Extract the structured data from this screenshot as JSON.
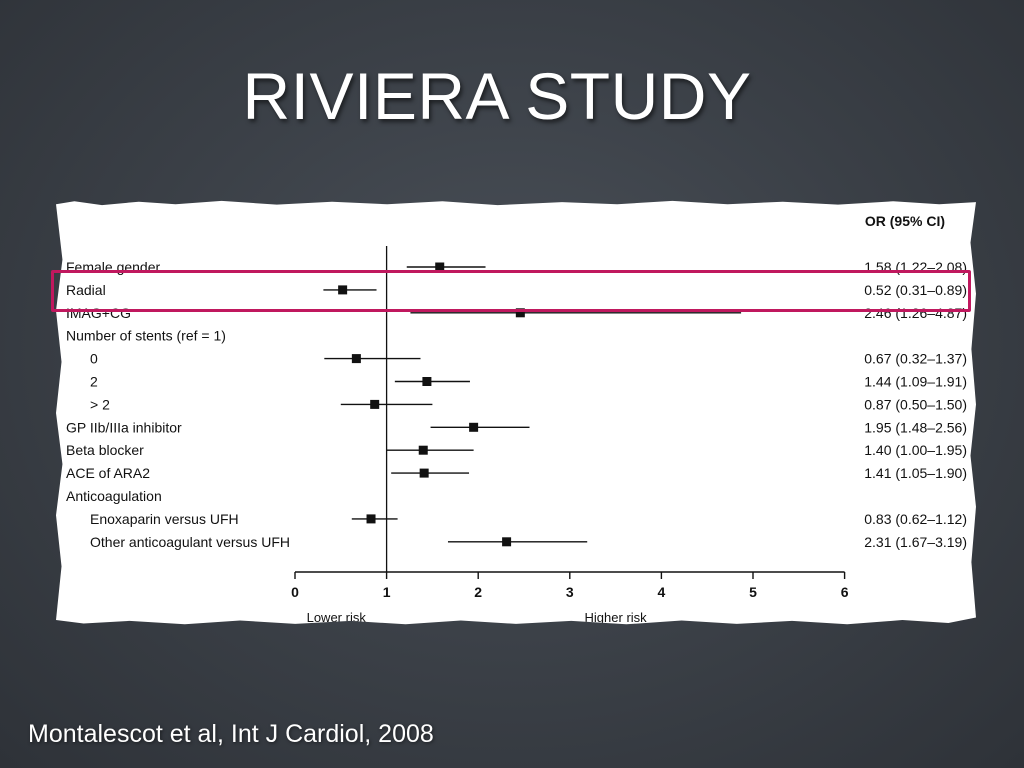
{
  "slide": {
    "title": "RIVIERA STUDY",
    "citation": "Montalescot et al, Int J Cardiol, 2008",
    "highlight_color": "#c0185e",
    "highlighted_row": "Radial"
  },
  "chart_data": {
    "type": "forest",
    "column_header": "OR (95% CI)",
    "reference_line": 1,
    "xlim": [
      0,
      6
    ],
    "x_ticks": [
      "0",
      "1",
      "2",
      "3",
      "4",
      "5",
      "6"
    ],
    "x_caption_left": "Lower risk",
    "x_caption_right": "Higher risk",
    "rows": [
      {
        "label": "Female gender",
        "indent": 0,
        "or": 1.58,
        "lo": 1.22,
        "hi": 2.08,
        "ci_text": "1.58 (1.22–2.08)"
      },
      {
        "label": "Radial",
        "indent": 0,
        "or": 0.52,
        "lo": 0.31,
        "hi": 0.89,
        "ci_text": "0.52 (0.31–0.89)"
      },
      {
        "label": "IMAG+CG",
        "indent": 0,
        "or": 2.46,
        "lo": 1.26,
        "hi": 4.87,
        "ci_text": "2.46 (1.26–4.87)"
      },
      {
        "label": "Number of stents (ref = 1)",
        "indent": 0,
        "or": null,
        "lo": null,
        "hi": null,
        "ci_text": ""
      },
      {
        "label": "0",
        "indent": 1,
        "or": 0.67,
        "lo": 0.32,
        "hi": 1.37,
        "ci_text": "0.67 (0.32–1.37)"
      },
      {
        "label": "2",
        "indent": 1,
        "or": 1.44,
        "lo": 1.09,
        "hi": 1.91,
        "ci_text": "1.44 (1.09–1.91)"
      },
      {
        "label": "> 2",
        "indent": 1,
        "or": 0.87,
        "lo": 0.5,
        "hi": 1.5,
        "ci_text": "0.87 (0.50–1.50)"
      },
      {
        "label": "GP IIb/IIIa inhibitor",
        "indent": 0,
        "or": 1.95,
        "lo": 1.48,
        "hi": 2.56,
        "ci_text": "1.95 (1.48–2.56)"
      },
      {
        "label": "Beta blocker",
        "indent": 0,
        "or": 1.4,
        "lo": 1.0,
        "hi": 1.95,
        "ci_text": "1.40 (1.00–1.95)"
      },
      {
        "label": "ACE of ARA2",
        "indent": 0,
        "or": 1.41,
        "lo": 1.05,
        "hi": 1.9,
        "ci_text": "1.41 (1.05–1.90)"
      },
      {
        "label": "Anticoagulation",
        "indent": 0,
        "or": null,
        "lo": null,
        "hi": null,
        "ci_text": ""
      },
      {
        "label": "Enoxaparin versus UFH",
        "indent": 1,
        "or": 0.83,
        "lo": 0.62,
        "hi": 1.12,
        "ci_text": "0.83 (0.62–1.12)"
      },
      {
        "label": "Other anticoagulant versus UFH",
        "indent": 1,
        "or": 2.31,
        "lo": 1.67,
        "hi": 3.19,
        "ci_text": "2.31 (1.67–3.19)"
      }
    ]
  }
}
